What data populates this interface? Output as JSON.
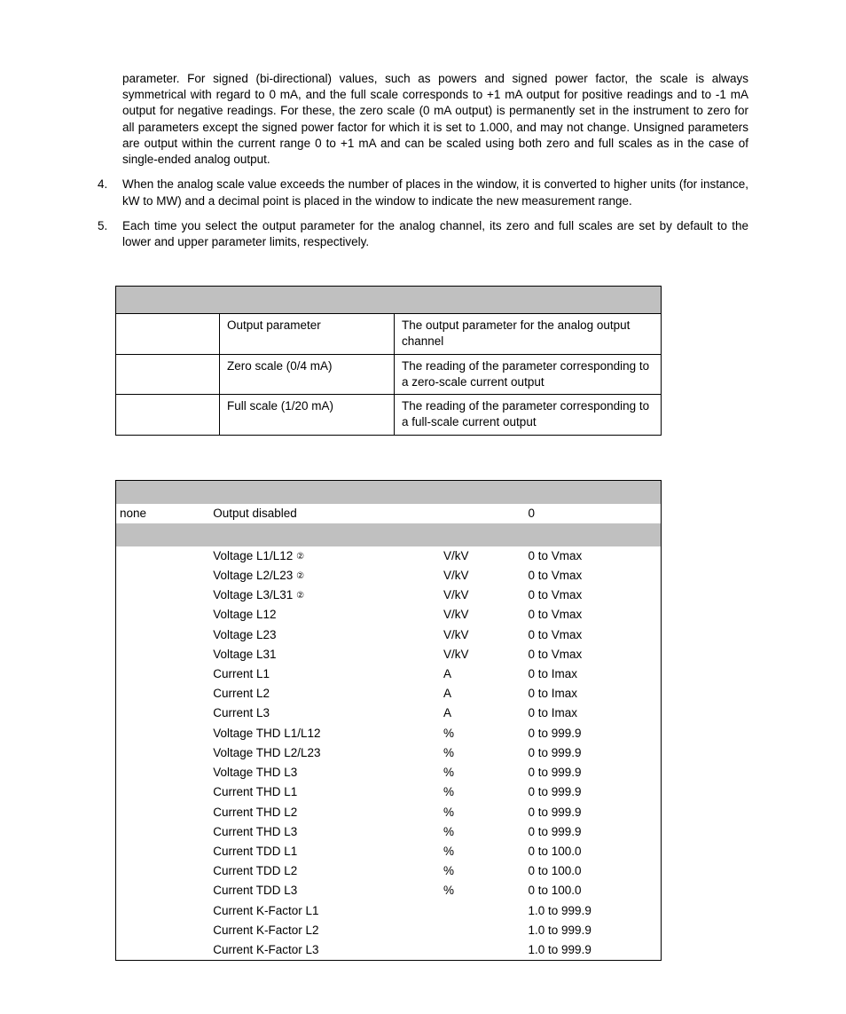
{
  "paragraphs": {
    "cont3": "parameter. For signed (bi-directional) values, such as powers and signed power factor, the scale is always symmetrical with regard to 0 mA, and the full scale corresponds to +1 mA output for positive readings and to -1 mA output for negative readings. For these, the zero scale (0 mA output) is permanently set in the instrument to zero for all parameters except the signed power factor for which it is set to 1.000, and may not change. Unsigned parameters are output within the current range 0 to +1 mA and can be scaled using both zero and full scales as in the case of single-ended analog output.",
    "num4": "4.",
    "p4": "When the analog scale value exceeds the number of places in the window, it is converted to higher units (for instance, kW to MW) and a decimal point is placed in the window to indicate the new measurement range.",
    "num5": "5.",
    "p5": "Each time you select the output parameter for the analog channel, its zero and full scales are set by default to the lower and upper parameter limits, respectively."
  },
  "table1_rows": [
    {
      "c1": "Output parameter",
      "c2": "The output parameter for the analog output channel"
    },
    {
      "c1": "Zero scale (0/4 mA)",
      "c2": "The reading of the parameter corresponding to a zero-scale current output"
    },
    {
      "c1": "Full scale (1/20 mA)",
      "c2": "The reading of the parameter corresponding to a full-scale current output"
    }
  ],
  "table2_none": {
    "code": "none",
    "desc": "Output disabled",
    "unit": "",
    "range": "0"
  },
  "table2_rows": [
    {
      "desc": "Voltage L1/L12 ",
      "note": "②",
      "unit": "V/kV",
      "range": "0 to Vmax"
    },
    {
      "desc": "Voltage L2/L23 ",
      "note": "②",
      "unit": "V/kV",
      "range": "0 to Vmax"
    },
    {
      "desc": "Voltage L3/L31 ",
      "note": "②",
      "unit": "V/kV",
      "range": "0 to Vmax"
    },
    {
      "desc": "Voltage L12",
      "note": "",
      "unit": "V/kV",
      "range": "0 to Vmax"
    },
    {
      "desc": "Voltage L23",
      "note": "",
      "unit": "V/kV",
      "range": "0 to Vmax"
    },
    {
      "desc": "Voltage L31",
      "note": "",
      "unit": "V/kV",
      "range": "0 to Vmax"
    },
    {
      "desc": "Current L1",
      "note": "",
      "unit": "A",
      "range": "0 to Imax"
    },
    {
      "desc": "Current L2",
      "note": "",
      "unit": "A",
      "range": "0 to Imax"
    },
    {
      "desc": "Current L3",
      "note": "",
      "unit": "A",
      "range": "0 to Imax"
    },
    {
      "desc": "Voltage THD L1/L12",
      "note": "",
      "unit": "%",
      "range": "0 to 999.9"
    },
    {
      "desc": "Voltage THD L2/L23",
      "note": "",
      "unit": "%",
      "range": "0 to 999.9"
    },
    {
      "desc": "Voltage THD L3",
      "note": "",
      "unit": "%",
      "range": "0 to 999.9"
    },
    {
      "desc": "Current THD L1",
      "note": "",
      "unit": "%",
      "range": "0 to 999.9"
    },
    {
      "desc": "Current THD L2",
      "note": "",
      "unit": "%",
      "range": "0 to 999.9"
    },
    {
      "desc": "Current THD L3",
      "note": "",
      "unit": "%",
      "range": "0 to 999.9"
    },
    {
      "desc": "Current TDD L1",
      "note": "",
      "unit": "%",
      "range": "0 to 100.0"
    },
    {
      "desc": "Current TDD L2",
      "note": "",
      "unit": "%",
      "range": "0 to 100.0"
    },
    {
      "desc": "Current TDD L3",
      "note": "",
      "unit": "%",
      "range": "0 to 100.0"
    },
    {
      "desc": "Current K-Factor L1",
      "note": "",
      "unit": "",
      "range": "1.0 to 999.9"
    },
    {
      "desc": "Current K-Factor L2",
      "note": "",
      "unit": "",
      "range": "1.0 to 999.9"
    },
    {
      "desc": "Current K-Factor L3",
      "note": "",
      "unit": "",
      "range": "1.0 to 999.9"
    }
  ]
}
